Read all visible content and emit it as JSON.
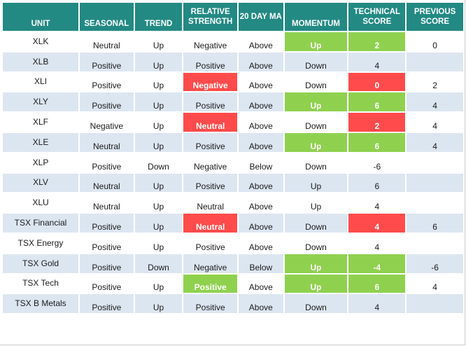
{
  "headers": {
    "unit": "UNIT",
    "seasonal": "SEASONAL",
    "trend": "TREND",
    "relative_strength": "RELATIVE STRENGTH",
    "ma20": "20 DAY MA",
    "momentum": "MOMENTUM",
    "technical_score": "TECHNICAL SCORE",
    "previous_score": "PREVIOUS SCORE"
  },
  "colors": {
    "header_bg": "#238983",
    "stripe": "#dce6f1",
    "red": "#ff4b4b",
    "green": "#8fd14f"
  },
  "rows": [
    {
      "unit": "XLK",
      "seasonal": "Neutral",
      "trend": "Up",
      "relative_strength": "Negative",
      "ma20": "Above",
      "momentum": "Up",
      "technical_score": "2",
      "previous_score": "0"
    },
    {
      "unit": "XLB",
      "seasonal": "Positive",
      "trend": "Up",
      "relative_strength": "Positive",
      "ma20": "Above",
      "momentum": "Down",
      "technical_score": "4",
      "previous_score": ""
    },
    {
      "unit": "XLI",
      "seasonal": "Positive",
      "trend": "Up",
      "relative_strength": "Negative",
      "ma20": "Above",
      "momentum": "Down",
      "technical_score": "0",
      "previous_score": "2"
    },
    {
      "unit": "XLY",
      "seasonal": "Positive",
      "trend": "Up",
      "relative_strength": "Positive",
      "ma20": "Above",
      "momentum": "Up",
      "technical_score": "6",
      "previous_score": "4"
    },
    {
      "unit": "XLF",
      "seasonal": "Negative",
      "trend": "Up",
      "relative_strength": "Neutral",
      "ma20": "Above",
      "momentum": "Down",
      "technical_score": "2",
      "previous_score": "4"
    },
    {
      "unit": "XLE",
      "seasonal": "Neutral",
      "trend": "Up",
      "relative_strength": "Positive",
      "ma20": "Above",
      "momentum": "Up",
      "technical_score": "6",
      "previous_score": "4"
    },
    {
      "unit": "XLP",
      "seasonal": "Positive",
      "trend": "Down",
      "relative_strength": "Negative",
      "ma20": "Below",
      "momentum": "Down",
      "technical_score": "-6",
      "previous_score": ""
    },
    {
      "unit": "XLV",
      "seasonal": "Neutral",
      "trend": "Up",
      "relative_strength": "Positive",
      "ma20": "Above",
      "momentum": "Up",
      "technical_score": "6",
      "previous_score": ""
    },
    {
      "unit": "XLU",
      "seasonal": "Neutral",
      "trend": "Up",
      "relative_strength": "Neutral",
      "ma20": "Above",
      "momentum": "Up",
      "technical_score": "4",
      "previous_score": ""
    },
    {
      "unit": "TSX Financial",
      "seasonal": "Positive",
      "trend": "Up",
      "relative_strength": "Neutral",
      "ma20": "Above",
      "momentum": "Down",
      "technical_score": "4",
      "previous_score": "6"
    },
    {
      "unit": "TSX Energy",
      "seasonal": "Positive",
      "trend": "Up",
      "relative_strength": "Positive",
      "ma20": "Above",
      "momentum": "Down",
      "technical_score": "4",
      "previous_score": ""
    },
    {
      "unit": "TSX Gold",
      "seasonal": "Positive",
      "trend": "Down",
      "relative_strength": "Negative",
      "ma20": "Below",
      "momentum": "Up",
      "technical_score": "-4",
      "previous_score": "-6"
    },
    {
      "unit": "TSX Tech",
      "seasonal": "Positive",
      "trend": "Up",
      "relative_strength": "Positive",
      "ma20": "Above",
      "momentum": "Up",
      "technical_score": "6",
      "previous_score": "4"
    },
    {
      "unit": "TSX B Metals",
      "seasonal": "Positive",
      "trend": "Up",
      "relative_strength": "Positive",
      "ma20": "Above",
      "momentum": "Down",
      "technical_score": "4",
      "previous_score": ""
    }
  ]
}
